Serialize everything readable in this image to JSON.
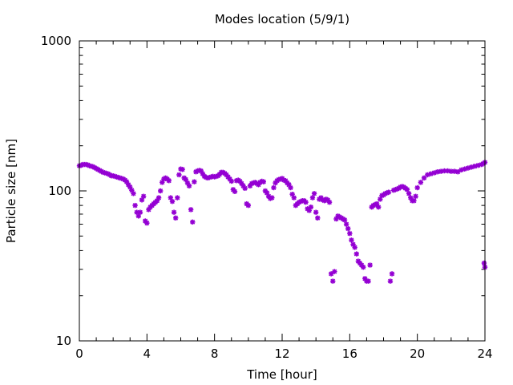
{
  "chart_data": {
    "type": "scatter",
    "title": "Modes location (5/9/1)",
    "xlabel": "Time [hour]",
    "ylabel": "Particle size [nm]",
    "xlim": [
      0,
      24
    ],
    "ylim": [
      10,
      1000
    ],
    "yscale": "log",
    "grid": false,
    "marker": "asterisk",
    "color": "#9400d3",
    "xticks": [
      0,
      4,
      8,
      12,
      16,
      20,
      24
    ],
    "xtick_labels": [
      "0",
      "4",
      "8",
      "12",
      "16",
      "20",
      "24"
    ],
    "yticks": [
      10,
      100,
      1000
    ],
    "ytick_labels": [
      "10",
      "100",
      "1000"
    ],
    "series": [
      {
        "points": [
          [
            0.0,
            147
          ],
          [
            0.1,
            148
          ],
          [
            0.2,
            150
          ],
          [
            0.3,
            150
          ],
          [
            0.4,
            150
          ],
          [
            0.5,
            149
          ],
          [
            0.6,
            147
          ],
          [
            0.7,
            146
          ],
          [
            0.8,
            145
          ],
          [
            0.9,
            143
          ],
          [
            1.0,
            141
          ],
          [
            1.1,
            139
          ],
          [
            1.2,
            137
          ],
          [
            1.3,
            135
          ],
          [
            1.4,
            133
          ],
          [
            1.5,
            132
          ],
          [
            1.6,
            131
          ],
          [
            1.7,
            130
          ],
          [
            1.8,
            128
          ],
          [
            1.9,
            126
          ],
          [
            2.0,
            126
          ],
          [
            2.1,
            125
          ],
          [
            2.2,
            124
          ],
          [
            2.3,
            123
          ],
          [
            2.4,
            122
          ],
          [
            2.5,
            121
          ],
          [
            2.6,
            120
          ],
          [
            2.7,
            118
          ],
          [
            2.8,
            115
          ],
          [
            2.9,
            110
          ],
          [
            3.0,
            106
          ],
          [
            3.1,
            101
          ],
          [
            3.2,
            96
          ],
          [
            3.3,
            80
          ],
          [
            3.4,
            72
          ],
          [
            3.5,
            68
          ],
          [
            3.6,
            72
          ],
          [
            3.7,
            87
          ],
          [
            3.8,
            92
          ],
          [
            3.9,
            63
          ],
          [
            4.0,
            61
          ],
          [
            4.1,
            75
          ],
          [
            4.2,
            78
          ],
          [
            4.3,
            80
          ],
          [
            4.4,
            82
          ],
          [
            4.5,
            84
          ],
          [
            4.6,
            86
          ],
          [
            4.7,
            90
          ],
          [
            4.8,
            100
          ],
          [
            4.9,
            114
          ],
          [
            5.0,
            120
          ],
          [
            5.1,
            122
          ],
          [
            5.2,
            120
          ],
          [
            5.3,
            117
          ],
          [
            5.4,
            90
          ],
          [
            5.5,
            85
          ],
          [
            5.6,
            72
          ],
          [
            5.7,
            66
          ],
          [
            5.8,
            90
          ],
          [
            5.9,
            128
          ],
          [
            6.0,
            140
          ],
          [
            6.1,
            139
          ],
          [
            6.2,
            122
          ],
          [
            6.3,
            119
          ],
          [
            6.4,
            113
          ],
          [
            6.5,
            108
          ],
          [
            6.6,
            75
          ],
          [
            6.7,
            62
          ],
          [
            6.8,
            115
          ],
          [
            6.9,
            134
          ],
          [
            7.0,
            136
          ],
          [
            7.1,
            137
          ],
          [
            7.2,
            136
          ],
          [
            7.3,
            130
          ],
          [
            7.4,
            125
          ],
          [
            7.5,
            123
          ],
          [
            7.6,
            122
          ],
          [
            7.7,
            123
          ],
          [
            7.8,
            124
          ],
          [
            7.9,
            125
          ],
          [
            8.0,
            124
          ],
          [
            8.1,
            125
          ],
          [
            8.2,
            126
          ],
          [
            8.3,
            129
          ],
          [
            8.4,
            133
          ],
          [
            8.5,
            133
          ],
          [
            8.6,
            131
          ],
          [
            8.7,
            128
          ],
          [
            8.8,
            124
          ],
          [
            8.9,
            120
          ],
          [
            9.0,
            116
          ],
          [
            9.1,
            102
          ],
          [
            9.2,
            99
          ],
          [
            9.3,
            117
          ],
          [
            9.4,
            118
          ],
          [
            9.5,
            116
          ],
          [
            9.6,
            112
          ],
          [
            9.7,
            108
          ],
          [
            9.8,
            104
          ],
          [
            9.9,
            82
          ],
          [
            10.0,
            80
          ],
          [
            10.1,
            108
          ],
          [
            10.2,
            112
          ],
          [
            10.3,
            113
          ],
          [
            10.4,
            114
          ],
          [
            10.5,
            112
          ],
          [
            10.6,
            110
          ],
          [
            10.7,
            114
          ],
          [
            10.8,
            116
          ],
          [
            10.9,
            115
          ],
          [
            11.0,
            100
          ],
          [
            11.1,
            97
          ],
          [
            11.2,
            92
          ],
          [
            11.3,
            89
          ],
          [
            11.4,
            90
          ],
          [
            11.5,
            105
          ],
          [
            11.6,
            113
          ],
          [
            11.7,
            117
          ],
          [
            11.8,
            119
          ],
          [
            11.9,
            120
          ],
          [
            12.0,
            121
          ],
          [
            12.1,
            118
          ],
          [
            12.2,
            117
          ],
          [
            12.3,
            113
          ],
          [
            12.4,
            110
          ],
          [
            12.5,
            105
          ],
          [
            12.6,
            95
          ],
          [
            12.7,
            90
          ],
          [
            12.8,
            80
          ],
          [
            12.9,
            82
          ],
          [
            13.0,
            84
          ],
          [
            13.1,
            85
          ],
          [
            13.2,
            86
          ],
          [
            13.3,
            86
          ],
          [
            13.4,
            84
          ],
          [
            13.5,
            76
          ],
          [
            13.6,
            74
          ],
          [
            13.7,
            78
          ],
          [
            13.8,
            90
          ],
          [
            13.9,
            96
          ],
          [
            14.0,
            72
          ],
          [
            14.1,
            66
          ],
          [
            14.2,
            88
          ],
          [
            14.3,
            90
          ],
          [
            14.4,
            87
          ],
          [
            14.5,
            86
          ],
          [
            14.6,
            88
          ],
          [
            14.7,
            87
          ],
          [
            14.8,
            84
          ],
          [
            14.9,
            28
          ],
          [
            15.0,
            25
          ],
          [
            15.1,
            29
          ],
          [
            15.2,
            65
          ],
          [
            15.3,
            68
          ],
          [
            15.4,
            67
          ],
          [
            15.5,
            66
          ],
          [
            15.6,
            65
          ],
          [
            15.7,
            64
          ],
          [
            15.8,
            60
          ],
          [
            15.9,
            56
          ],
          [
            16.0,
            52
          ],
          [
            16.1,
            47
          ],
          [
            16.2,
            44
          ],
          [
            16.3,
            42
          ],
          [
            16.4,
            38
          ],
          [
            16.5,
            34
          ],
          [
            16.6,
            33
          ],
          [
            16.7,
            32
          ],
          [
            16.8,
            31
          ],
          [
            16.9,
            26
          ],
          [
            17.0,
            25
          ],
          [
            17.1,
            25
          ],
          [
            17.2,
            32
          ],
          [
            17.3,
            78
          ],
          [
            17.4,
            80
          ],
          [
            17.5,
            81
          ],
          [
            17.6,
            82
          ],
          [
            17.7,
            78
          ],
          [
            17.8,
            88
          ],
          [
            17.9,
            93
          ],
          [
            18.0,
            94
          ],
          [
            18.1,
            96
          ],
          [
            18.2,
            97
          ],
          [
            18.3,
            98
          ],
          [
            18.4,
            25
          ],
          [
            18.5,
            28
          ],
          [
            18.6,
            101
          ],
          [
            18.7,
            102
          ],
          [
            18.8,
            103
          ],
          [
            18.9,
            104
          ],
          [
            19.0,
            106
          ],
          [
            19.1,
            107
          ],
          [
            19.2,
            106
          ],
          [
            19.3,
            104
          ],
          [
            19.4,
            102
          ],
          [
            19.5,
            96
          ],
          [
            19.6,
            90
          ],
          [
            19.7,
            86
          ],
          [
            19.8,
            86
          ],
          [
            19.9,
            92
          ],
          [
            20.0,
            105
          ],
          [
            20.2,
            114
          ],
          [
            20.4,
            122
          ],
          [
            20.6,
            128
          ],
          [
            20.8,
            130
          ],
          [
            21.0,
            132
          ],
          [
            21.2,
            134
          ],
          [
            21.4,
            135
          ],
          [
            21.6,
            136
          ],
          [
            21.8,
            136
          ],
          [
            22.0,
            135
          ],
          [
            22.2,
            135
          ],
          [
            22.4,
            134
          ],
          [
            22.6,
            138
          ],
          [
            22.8,
            140
          ],
          [
            23.0,
            142
          ],
          [
            23.2,
            144
          ],
          [
            23.4,
            146
          ],
          [
            23.6,
            148
          ],
          [
            23.8,
            150
          ],
          [
            23.9,
            152
          ],
          [
            24.0,
            155
          ],
          [
            23.95,
            33
          ],
          [
            24.0,
            31
          ]
        ]
      }
    ]
  }
}
